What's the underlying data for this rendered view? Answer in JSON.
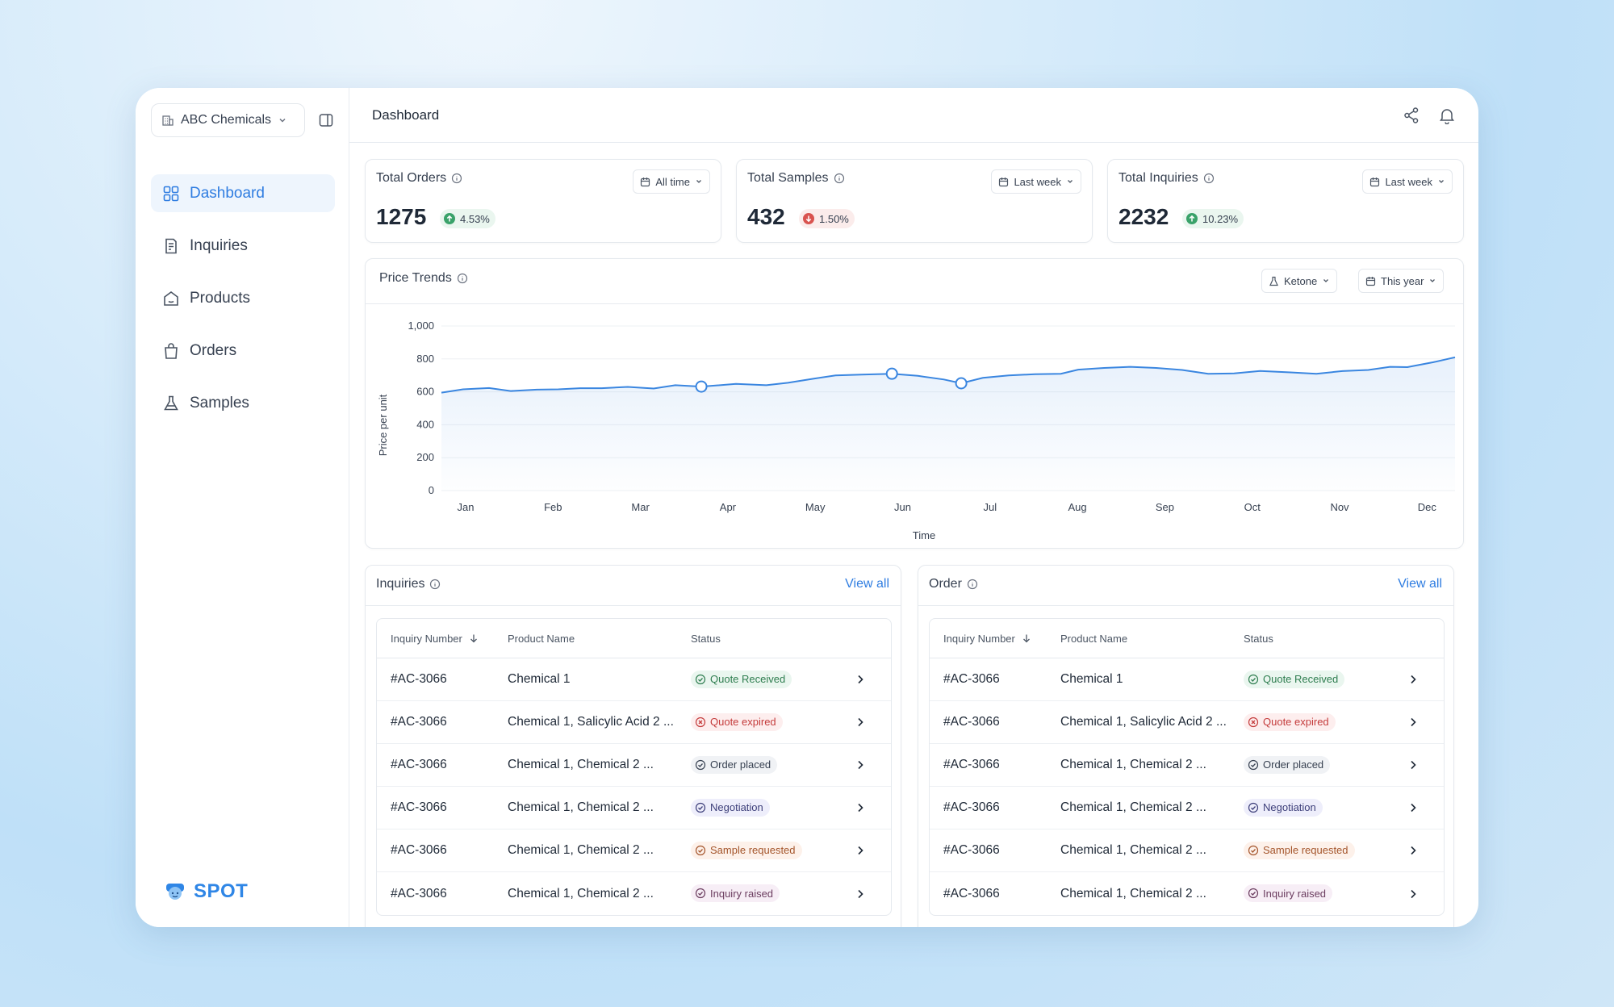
{
  "sidebar": {
    "org_name": "ABC Chemicals",
    "nav": [
      {
        "label": "Dashboard",
        "icon": "grid-icon",
        "active": true
      },
      {
        "label": "Inquiries",
        "icon": "document-icon"
      },
      {
        "label": "Products",
        "icon": "box-icon"
      },
      {
        "label": "Orders",
        "icon": "bag-icon"
      },
      {
        "label": "Samples",
        "icon": "flask-icon"
      }
    ],
    "brand": "SPOT"
  },
  "header": {
    "title": "Dashboard"
  },
  "stats": [
    {
      "title": "Total Orders",
      "value": "1275",
      "change": "4.53%",
      "trend": "up",
      "range": "All time"
    },
    {
      "title": "Total Samples",
      "value": "432",
      "change": "1.50%",
      "trend": "down",
      "range": "Last week"
    },
    {
      "title": "Total Inquiries",
      "value": "2232",
      "change": "10.23%",
      "trend": "up",
      "range": "Last week"
    }
  ],
  "price_trends": {
    "title": "Price Trends",
    "product_filter": "Ketone",
    "range_filter": "This year"
  },
  "chart_data": {
    "type": "area",
    "xlabel": "Time",
    "ylabel": "Price per unit",
    "ylim": [
      0,
      1000
    ],
    "yticks": [
      "0",
      "200",
      "400",
      "600",
      "800",
      "1,000"
    ],
    "xticks": [
      "Jan",
      "Feb",
      "Mar",
      "Apr",
      "May",
      "Jun",
      "Jul",
      "Aug",
      "Sep",
      "Oct",
      "Nov",
      "Dec"
    ],
    "grid": true,
    "series": [
      {
        "x": [
          0,
          0.25,
          0.55,
          0.8,
          1.1,
          1.35,
          1.6,
          1.85,
          2.15,
          2.45,
          2.7,
          3.0,
          3.4,
          3.75,
          4.0,
          4.3,
          4.55,
          4.85,
          5.2,
          5.5,
          5.8,
          6.0,
          6.25,
          6.55,
          6.85,
          7.15,
          7.35,
          7.65,
          7.95,
          8.25,
          8.55,
          8.85,
          9.15,
          9.45,
          9.8,
          10.1,
          10.4,
          10.7,
          10.95,
          11.15,
          11.45,
          11.7
        ],
        "y": [
          595,
          615,
          623,
          605,
          613,
          615,
          622,
          622,
          630,
          620,
          640,
          632,
          648,
          640,
          655,
          680,
          700,
          705,
          710,
          697,
          675,
          652,
          685,
          700,
          707,
          710,
          735,
          745,
          752,
          745,
          733,
          710,
          712,
          727,
          718,
          710,
          726,
          733,
          752,
          750,
          780,
          810
        ]
      }
    ],
    "highlight_points": [
      [
        3.0,
        632
      ],
      [
        5.2,
        710
      ],
      [
        6.0,
        652
      ]
    ]
  },
  "inquiries": {
    "title": "Inquiries",
    "view_all": "View all",
    "columns": [
      "Inquiry Number",
      "Product Name",
      "Status"
    ],
    "rows": [
      {
        "number": "#AC-3066",
        "product": "Chemical 1",
        "status": "Quote Received",
        "kind": "green"
      },
      {
        "number": "#AC-3066",
        "product": "Chemical 1, Salicylic Acid 2 ...",
        "status": "Quote expired",
        "kind": "red"
      },
      {
        "number": "#AC-3066",
        "product": "Chemical 1, Chemical 2 ...",
        "status": "Order placed",
        "kind": "gray"
      },
      {
        "number": "#AC-3066",
        "product": "Chemical 1, Chemical 2 ...",
        "status": "Negotiation",
        "kind": "purple"
      },
      {
        "number": "#AC-3066",
        "product": "Chemical 1, Chemical 2 ...",
        "status": "Sample requested",
        "kind": "orange"
      },
      {
        "number": "#AC-3066",
        "product": "Chemical 1, Chemical 2 ...",
        "status": "Inquiry raised",
        "kind": "pink"
      }
    ]
  },
  "orders": {
    "title": "Order",
    "view_all": "View all",
    "columns": [
      "Inquiry Number",
      "Product Name",
      "Status"
    ],
    "rows": [
      {
        "number": "#AC-3066",
        "product": "Chemical 1",
        "status": "Quote Received",
        "kind": "green"
      },
      {
        "number": "#AC-3066",
        "product": "Chemical 1, Salicylic Acid 2 ...",
        "status": "Quote expired",
        "kind": "red"
      },
      {
        "number": "#AC-3066",
        "product": "Chemical 1, Chemical 2 ...",
        "status": "Order placed",
        "kind": "gray"
      },
      {
        "number": "#AC-3066",
        "product": "Chemical 1, Chemical 2 ...",
        "status": "Negotiation",
        "kind": "purple"
      },
      {
        "number": "#AC-3066",
        "product": "Chemical 1, Chemical 2 ...",
        "status": "Sample requested",
        "kind": "orange"
      },
      {
        "number": "#AC-3066",
        "product": "Chemical 1, Chemical 2 ...",
        "status": "Inquiry raised",
        "kind": "pink"
      }
    ]
  },
  "colors": {
    "accent": "#2f7de1",
    "line": "#3a86e0",
    "up": "#3aa26a",
    "down": "#d9534f"
  }
}
